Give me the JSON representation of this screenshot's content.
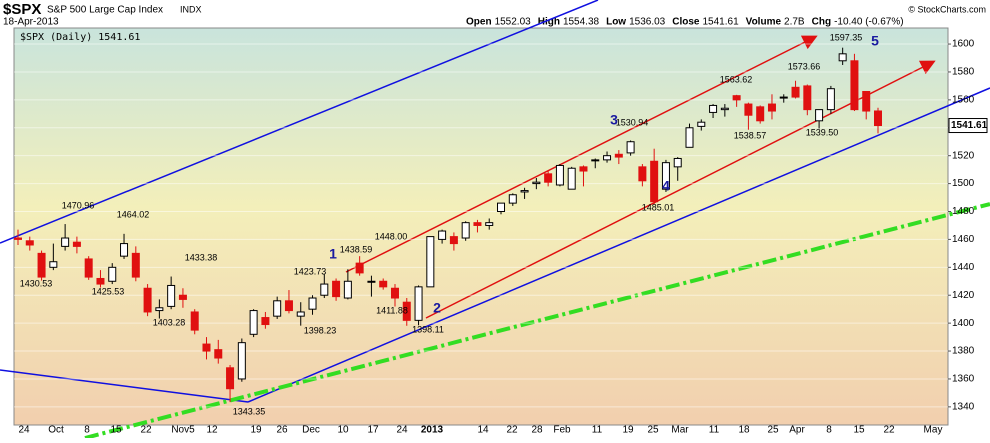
{
  "header": {
    "symbol": "$SPX",
    "name": "S&P 500 Large Cap Index",
    "exchange": "INDX",
    "date": "18-Apr-2013",
    "quote": [
      {
        "label": "Open",
        "value": "1552.03"
      },
      {
        "label": "High",
        "value": "1554.38"
      },
      {
        "label": "Low",
        "value": "1536.03"
      },
      {
        "label": "Close",
        "value": "1541.61"
      },
      {
        "label": "Volume",
        "value": "2.7B"
      },
      {
        "label": "Chg",
        "value": "-10.40 (-0.67%)"
      }
    ],
    "credit": "© StockCharts.com"
  },
  "chart_data": {
    "type": "candlestick",
    "legend": "$SPX (Daily) 1541.61",
    "last_price": 1541.61,
    "ylim": [
      1327,
      1611.5
    ],
    "yticks": [
      1340,
      1360,
      1380,
      1400,
      1420,
      1440,
      1460,
      1480,
      1500,
      1520,
      1540,
      1560,
      1580,
      1600
    ],
    "up_color": "#000000",
    "down_color": "#e01010",
    "date_labels": [
      "24",
      "Oct",
      "8",
      "15",
      "22",
      "Nov5",
      "12",
      "19",
      "26",
      "Dec",
      "10",
      "17",
      "24",
      "2013",
      "14",
      "22",
      "28",
      "Feb",
      "11",
      "19",
      "25",
      "Mar",
      "11",
      "18",
      "25",
      "Apr",
      "8",
      "15",
      "22",
      "May"
    ],
    "candles": [
      [
        1461,
        1467,
        1456,
        1460
      ],
      [
        1459,
        1462,
        1452,
        1456
      ],
      [
        1450,
        1452,
        1430.5,
        1433
      ],
      [
        1440,
        1457,
        1438,
        1444
      ],
      [
        1455,
        1471,
        1452,
        1461
      ],
      [
        1458,
        1462,
        1450,
        1455
      ],
      [
        1446,
        1448,
        1431,
        1433
      ],
      [
        1432,
        1438,
        1425.5,
        1428
      ],
      [
        1430,
        1443,
        1428,
        1440
      ],
      [
        1448,
        1464,
        1446,
        1457
      ],
      [
        1450,
        1455,
        1430,
        1433
      ],
      [
        1425,
        1428,
        1405,
        1408
      ],
      [
        1409,
        1417,
        1403.3,
        1411
      ],
      [
        1412,
        1433.4,
        1410,
        1427
      ],
      [
        1420,
        1425,
        1411,
        1417
      ],
      [
        1408,
        1410,
        1392,
        1395
      ],
      [
        1385,
        1390,
        1374,
        1380
      ],
      [
        1381,
        1388,
        1371,
        1375
      ],
      [
        1368,
        1370,
        1343.4,
        1353
      ],
      [
        1360,
        1389,
        1358,
        1386
      ],
      [
        1392,
        1410,
        1390,
        1409
      ],
      [
        1404,
        1408,
        1396,
        1399
      ],
      [
        1405,
        1419,
        1403,
        1416
      ],
      [
        1416,
        1423.7,
        1407,
        1409
      ],
      [
        1405,
        1415,
        1398.2,
        1408
      ],
      [
        1410,
        1420,
        1406,
        1418
      ],
      [
        1420,
        1435,
        1418,
        1428
      ],
      [
        1430,
        1432,
        1416,
        1419
      ],
      [
        1418,
        1438.6,
        1417,
        1430
      ],
      [
        1443,
        1448,
        1434,
        1436
      ],
      [
        1430,
        1434,
        1419,
        1430
      ],
      [
        1430,
        1432,
        1424,
        1426
      ],
      [
        1425,
        1428,
        1411.9,
        1418
      ],
      [
        1415,
        1418,
        1398.1,
        1402
      ],
      [
        1402,
        1427,
        1398.5,
        1426
      ],
      [
        1426,
        1462,
        1426,
        1462
      ],
      [
        1460,
        1467,
        1457,
        1466
      ],
      [
        1462,
        1465,
        1452,
        1457
      ],
      [
        1461,
        1473,
        1459,
        1472
      ],
      [
        1472,
        1474,
        1465,
        1470
      ],
      [
        1470,
        1475,
        1467,
        1472
      ],
      [
        1480,
        1486,
        1478,
        1486
      ],
      [
        1486,
        1493,
        1484,
        1492
      ],
      [
        1494,
        1497,
        1489,
        1495
      ],
      [
        1500,
        1504,
        1496,
        1501
      ],
      [
        1507,
        1509,
        1498,
        1501
      ],
      [
        1499,
        1514,
        1498,
        1513
      ],
      [
        1496,
        1512,
        1496,
        1511
      ],
      [
        1512,
        1513,
        1498,
        1509
      ],
      [
        1517,
        1518,
        1511,
        1517
      ],
      [
        1517,
        1523,
        1515,
        1520
      ],
      [
        1521,
        1524,
        1514,
        1519
      ],
      [
        1522,
        1530.9,
        1520,
        1530
      ],
      [
        1512,
        1514,
        1498,
        1502
      ],
      [
        1516,
        1525,
        1485,
        1487
      ],
      [
        1496,
        1517,
        1494,
        1515
      ],
      [
        1512,
        1519,
        1502,
        1518
      ],
      [
        1526,
        1543,
        1526,
        1540
      ],
      [
        1541,
        1546,
        1538,
        1544
      ],
      [
        1551,
        1557,
        1547,
        1556
      ],
      [
        1553,
        1557,
        1548,
        1554
      ],
      [
        1563,
        1563.6,
        1555,
        1560
      ],
      [
        1557,
        1558,
        1538.6,
        1549
      ],
      [
        1555,
        1556,
        1543,
        1545
      ],
      [
        1557,
        1564,
        1546,
        1552
      ],
      [
        1562,
        1564,
        1558,
        1562
      ],
      [
        1569,
        1573.7,
        1561,
        1562
      ],
      [
        1570,
        1571,
        1549,
        1553
      ],
      [
        1545,
        1553,
        1539.5,
        1553
      ],
      [
        1553,
        1570,
        1550,
        1568
      ],
      [
        1588,
        1597.4,
        1585,
        1593
      ],
      [
        1588,
        1593,
        1552,
        1553
      ],
      [
        1566,
        1566,
        1546,
        1552
      ],
      [
        1552.03,
        1554.38,
        1536.03,
        1541.61
      ]
    ],
    "annotations": [
      "1470.96",
      "1430.53",
      "1464.02",
      "1425.53",
      "1433.38",
      "1403.28",
      "1343.35",
      "1423.73",
      "1398.23",
      "1438.59",
      "1448.00",
      "1411.88",
      "1398.11",
      "1530.94",
      "1485.01",
      "1563.62",
      "1538.57",
      "1573.66",
      "1539.50",
      "1597.35"
    ],
    "waves": [
      "1",
      "2",
      "3",
      "4",
      "5"
    ]
  }
}
